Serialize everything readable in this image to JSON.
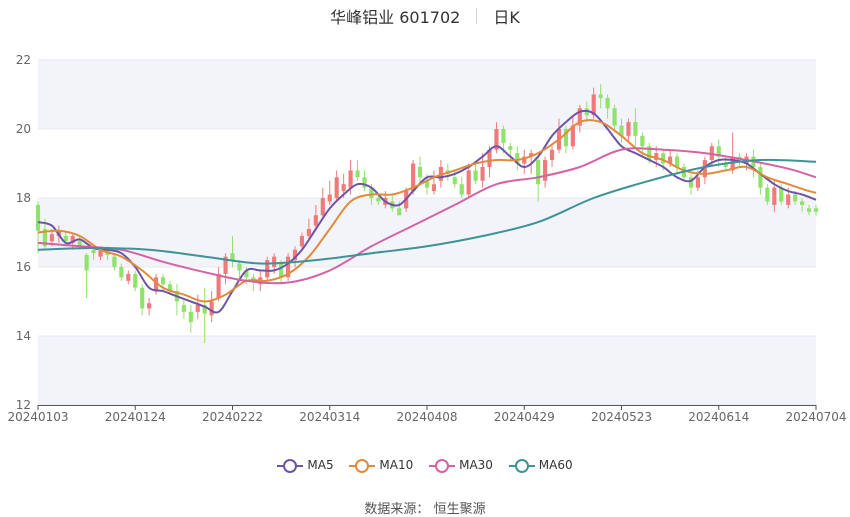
{
  "title": {
    "stock": "华峰铝业 601702",
    "period": "日K"
  },
  "source": {
    "label": "数据来源：",
    "value": "恒生聚源"
  },
  "colors": {
    "up": "#f07a7a",
    "down": "#8fe36a",
    "ma5": "#6e54a8",
    "ma10": "#e08b3a",
    "ma30": "#d462a4",
    "ma60": "#3d9398",
    "grid": "#e8e8f2",
    "band": "#f3f4f9"
  },
  "chart_data": {
    "type": "candlestick",
    "y_ticks": [
      "12",
      "14",
      "16",
      "18",
      "20",
      "22"
    ],
    "ylim": [
      12,
      22
    ],
    "x_ticks": [
      {
        "index": 0,
        "label": "20240103"
      },
      {
        "index": 14,
        "label": "20240124"
      },
      {
        "index": 28,
        "label": "20240222"
      },
      {
        "index": 42,
        "label": "20240314"
      },
      {
        "index": 56,
        "label": "20240408"
      },
      {
        "index": 70,
        "label": "20240429"
      },
      {
        "index": 84,
        "label": "20240523"
      },
      {
        "index": 98,
        "label": "20240614"
      },
      {
        "index": 112,
        "label": "20240704"
      }
    ],
    "candles_count": 113,
    "candles": [
      [
        17.8,
        17.05,
        17.9,
        16.4
      ],
      [
        17.1,
        16.6,
        17.4,
        16.5
      ],
      [
        16.75,
        16.95,
        17.1,
        16.6
      ],
      [
        16.9,
        17.05,
        17.2,
        16.7
      ],
      [
        16.9,
        16.75,
        17.0,
        16.6
      ],
      [
        16.7,
        16.9,
        17.0,
        16.5
      ],
      [
        16.75,
        16.6,
        16.9,
        16.5
      ],
      [
        16.35,
        15.9,
        16.4,
        15.1
      ],
      [
        16.5,
        16.4,
        16.6,
        16.2
      ],
      [
        16.3,
        16.5,
        16.6,
        16.2
      ],
      [
        16.5,
        16.35,
        16.6,
        16.2
      ],
      [
        16.3,
        16.0,
        16.4,
        15.9
      ],
      [
        16.0,
        15.7,
        16.1,
        15.6
      ],
      [
        15.6,
        15.8,
        15.9,
        15.5
      ],
      [
        15.8,
        15.4,
        15.9,
        15.3
      ],
      [
        15.4,
        14.8,
        15.5,
        14.6
      ],
      [
        14.8,
        14.95,
        15.1,
        14.6
      ],
      [
        15.3,
        15.7,
        15.8,
        15.2
      ],
      [
        15.7,
        15.5,
        15.8,
        15.3
      ],
      [
        15.5,
        15.3,
        15.6,
        15.2
      ],
      [
        15.3,
        15.0,
        15.5,
        14.6
      ],
      [
        14.9,
        14.7,
        15.1,
        14.5
      ],
      [
        14.7,
        14.4,
        14.9,
        14.1
      ],
      [
        14.7,
        14.9,
        15.2,
        14.5
      ],
      [
        14.9,
        14.65,
        15.4,
        13.8
      ],
      [
        14.6,
        15.0,
        15.3,
        14.4
      ],
      [
        15.1,
        15.8,
        16.0,
        15.0
      ],
      [
        15.8,
        16.3,
        16.4,
        15.5
      ],
      [
        16.4,
        16.2,
        16.9,
        16.0
      ],
      [
        16.1,
        15.9,
        16.2,
        15.7
      ],
      [
        15.9,
        15.7,
        16.0,
        15.5
      ],
      [
        15.7,
        15.6,
        15.8,
        15.3
      ],
      [
        15.5,
        15.7,
        15.9,
        15.3
      ],
      [
        15.7,
        16.2,
        16.3,
        15.6
      ],
      [
        16.0,
        16.3,
        16.4,
        15.8
      ],
      [
        16.1,
        15.7,
        16.2,
        15.5
      ],
      [
        15.7,
        16.3,
        16.4,
        15.6
      ],
      [
        16.2,
        16.5,
        16.6,
        16.0
      ],
      [
        16.6,
        16.9,
        17.0,
        16.5
      ],
      [
        16.9,
        17.1,
        17.4,
        16.8
      ],
      [
        17.2,
        17.5,
        17.8,
        17.1
      ],
      [
        17.5,
        18.0,
        18.3,
        17.4
      ],
      [
        17.9,
        18.1,
        18.5,
        17.8
      ],
      [
        18.0,
        18.6,
        18.8,
        17.9
      ],
      [
        18.2,
        18.4,
        18.7,
        18.0
      ],
      [
        18.3,
        18.8,
        19.1,
        18.1
      ],
      [
        18.8,
        18.6,
        19.1,
        18.5
      ],
      [
        18.6,
        18.3,
        18.8,
        18.2
      ],
      [
        18.3,
        18.0,
        18.4,
        17.8
      ],
      [
        18.0,
        17.9,
        18.1,
        17.8
      ],
      [
        17.8,
        18.0,
        18.2,
        17.7
      ],
      [
        17.9,
        17.7,
        18.1,
        17.6
      ],
      [
        17.7,
        17.5,
        17.9,
        17.5
      ],
      [
        17.7,
        18.2,
        18.3,
        17.6
      ],
      [
        18.2,
        19.0,
        19.1,
        18.1
      ],
      [
        18.9,
        18.6,
        19.2,
        18.4
      ],
      [
        18.5,
        18.3,
        18.7,
        18.1
      ],
      [
        18.2,
        18.4,
        18.8,
        18.1
      ],
      [
        18.5,
        18.9,
        19.1,
        18.3
      ],
      [
        18.8,
        18.7,
        19.0,
        18.5
      ],
      [
        18.6,
        18.4,
        18.8,
        18.3
      ],
      [
        18.4,
        18.1,
        18.6,
        18.0
      ],
      [
        18.1,
        18.8,
        19.0,
        18.0
      ],
      [
        18.8,
        18.5,
        19.0,
        18.4
      ],
      [
        18.5,
        18.9,
        19.3,
        18.3
      ],
      [
        18.9,
        19.4,
        19.5,
        18.6
      ],
      [
        19.4,
        20.0,
        20.2,
        19.3
      ],
      [
        20.0,
        19.6,
        20.1,
        19.3
      ],
      [
        19.5,
        19.4,
        19.6,
        19.1
      ],
      [
        19.3,
        19.0,
        19.5,
        18.8
      ],
      [
        19.0,
        19.2,
        19.4,
        18.7
      ],
      [
        19.2,
        19.3,
        19.4,
        18.7
      ],
      [
        19.1,
        18.4,
        19.2,
        17.9
      ],
      [
        18.5,
        19.1,
        19.2,
        18.3
      ],
      [
        19.1,
        19.4,
        19.5,
        18.9
      ],
      [
        19.4,
        20.0,
        20.3,
        19.3
      ],
      [
        20.0,
        19.5,
        20.1,
        19.3
      ],
      [
        19.5,
        20.1,
        20.4,
        19.4
      ],
      [
        20.1,
        20.6,
        20.7,
        19.9
      ],
      [
        20.6,
        20.4,
        20.8,
        20.2
      ],
      [
        20.4,
        21.0,
        21.2,
        20.3
      ],
      [
        21.0,
        20.9,
        21.3,
        20.6
      ],
      [
        20.9,
        20.6,
        21.0,
        20.3
      ],
      [
        20.6,
        20.1,
        20.7,
        19.9
      ],
      [
        20.1,
        19.8,
        20.3,
        19.6
      ],
      [
        19.8,
        20.2,
        20.3,
        19.6
      ],
      [
        20.2,
        19.8,
        20.6,
        19.5
      ],
      [
        19.8,
        19.5,
        19.9,
        19.2
      ],
      [
        19.5,
        19.1,
        19.6,
        19.0
      ],
      [
        19.1,
        19.3,
        19.5,
        18.9
      ],
      [
        19.3,
        19.0,
        19.4,
        18.8
      ],
      [
        19.0,
        19.2,
        19.4,
        18.9
      ],
      [
        19.2,
        18.9,
        19.3,
        18.7
      ],
      [
        18.9,
        18.6,
        19.0,
        18.5
      ],
      [
        18.6,
        18.3,
        18.7,
        18.1
      ],
      [
        18.3,
        18.6,
        18.8,
        18.2
      ],
      [
        18.6,
        19.1,
        19.2,
        18.4
      ],
      [
        19.1,
        19.5,
        19.6,
        18.9
      ],
      [
        19.5,
        19.2,
        19.7,
        18.9
      ],
      [
        19.0,
        18.9,
        19.2,
        18.8
      ],
      [
        18.8,
        19.2,
        19.9,
        18.7
      ],
      [
        19.2,
        19.1,
        19.3,
        18.9
      ],
      [
        19.0,
        19.2,
        19.3,
        18.8
      ],
      [
        19.2,
        18.9,
        19.4,
        18.6
      ],
      [
        18.9,
        18.3,
        19.0,
        18.1
      ],
      [
        18.3,
        17.9,
        18.4,
        17.8
      ],
      [
        17.8,
        18.3,
        18.5,
        17.6
      ],
      [
        18.3,
        17.9,
        18.4,
        17.8
      ],
      [
        17.8,
        18.1,
        18.3,
        17.7
      ],
      [
        18.1,
        17.9,
        18.2,
        17.8
      ],
      [
        17.9,
        17.8,
        18.0,
        17.6
      ],
      [
        17.7,
        17.6,
        17.8,
        17.5
      ],
      [
        17.7,
        17.6,
        17.8,
        17.5
      ]
    ],
    "series": [
      {
        "name": "MA5",
        "color": "#6e54a8",
        "x": [
          0,
          2,
          4,
          6,
          8,
          10,
          12,
          14,
          16,
          18,
          20,
          22,
          24,
          26,
          28,
          30,
          32,
          34,
          36,
          38,
          40,
          42,
          44,
          46,
          48,
          50,
          52,
          54,
          56,
          58,
          60,
          62,
          64,
          66,
          68,
          70,
          72,
          74,
          76,
          78,
          80,
          82,
          84,
          86,
          88,
          90,
          92,
          94,
          96,
          98,
          100,
          102,
          104,
          106,
          108,
          110,
          112
        ],
        "values": [
          17.3,
          17.2,
          16.7,
          16.8,
          16.55,
          16.5,
          16.4,
          16.0,
          15.4,
          15.3,
          15.15,
          15.0,
          14.85,
          14.7,
          15.3,
          15.9,
          15.9,
          15.9,
          16.1,
          16.5,
          17.1,
          17.7,
          18.1,
          18.4,
          18.3,
          17.9,
          17.8,
          18.2,
          18.6,
          18.6,
          18.7,
          18.9,
          19.2,
          19.5,
          19.2,
          18.9,
          19.2,
          19.8,
          20.2,
          20.5,
          20.45,
          20.0,
          19.5,
          19.3,
          19.1,
          18.9,
          18.6,
          18.5,
          18.9,
          19.1,
          19.1,
          19.0,
          18.7,
          18.4,
          18.2,
          18.1,
          17.95
        ]
      },
      {
        "name": "MA10",
        "color": "#e08b3a",
        "x": [
          0,
          3,
          6,
          9,
          12,
          15,
          18,
          21,
          24,
          27,
          30,
          33,
          36,
          39,
          42,
          45,
          48,
          51,
          54,
          57,
          60,
          63,
          66,
          69,
          72,
          75,
          78,
          81,
          84,
          87,
          90,
          93,
          96,
          99,
          102,
          105,
          108,
          111,
          112
        ],
        "values": [
          17.0,
          17.05,
          16.9,
          16.5,
          16.3,
          15.9,
          15.4,
          15.2,
          15.0,
          15.2,
          15.6,
          15.6,
          15.8,
          16.3,
          17.1,
          17.9,
          18.1,
          18.1,
          18.3,
          18.6,
          18.8,
          19.0,
          19.1,
          19.1,
          19.3,
          19.7,
          20.2,
          20.2,
          19.8,
          19.3,
          19.1,
          18.8,
          18.7,
          18.8,
          18.9,
          18.6,
          18.4,
          18.2,
          18.15
        ]
      },
      {
        "name": "MA30",
        "color": "#d462a4",
        "x": [
          0,
          6,
          12,
          18,
          24,
          30,
          36,
          42,
          48,
          54,
          60,
          66,
          72,
          78,
          84,
          90,
          96,
          102,
          108,
          112
        ],
        "values": [
          16.7,
          16.6,
          16.5,
          16.15,
          15.85,
          15.6,
          15.55,
          15.9,
          16.6,
          17.2,
          17.8,
          18.4,
          18.6,
          18.9,
          19.4,
          19.4,
          19.3,
          19.1,
          18.85,
          18.6
        ]
      },
      {
        "name": "MA60",
        "color": "#3d9398",
        "x": [
          0,
          8,
          16,
          24,
          32,
          40,
          48,
          56,
          64,
          72,
          80,
          88,
          96,
          104,
          112
        ],
        "values": [
          16.5,
          16.55,
          16.5,
          16.3,
          16.1,
          16.2,
          16.4,
          16.6,
          16.9,
          17.3,
          18.0,
          18.5,
          18.9,
          19.1,
          19.05
        ]
      }
    ]
  },
  "legend": [
    {
      "label": "MA5",
      "color": "#6e54a8"
    },
    {
      "label": "MA10",
      "color": "#e08b3a"
    },
    {
      "label": "MA30",
      "color": "#d462a4"
    },
    {
      "label": "MA60",
      "color": "#3d9398"
    }
  ]
}
